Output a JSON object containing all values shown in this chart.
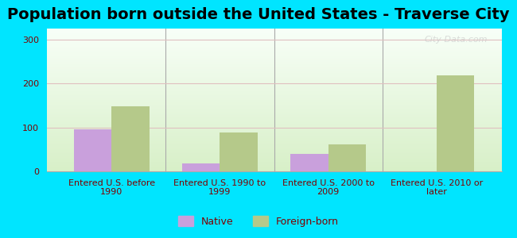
{
  "title": "Population born outside the United States - Traverse City",
  "categories": [
    "Entered U.S. before\n1990",
    "Entered U.S. 1990 to\n1999",
    "Entered U.S. 2000 to\n2009",
    "Entered U.S. 2010 or\nlater"
  ],
  "native_values": [
    95,
    18,
    40,
    0
  ],
  "foreign_values": [
    148,
    88,
    62,
    218
  ],
  "native_color": "#c9a0dc",
  "foreign_color": "#b5c98a",
  "bg_outer": "#00e5ff",
  "bg_plot_top": "#e8f5e0",
  "bg_plot_bottom": "#f0fff0",
  "ylim": [
    0,
    325
  ],
  "yticks": [
    0,
    100,
    200,
    300
  ],
  "grid_color": "#e0c0c0",
  "bar_width": 0.35,
  "title_fontsize": 14,
  "label_fontsize": 8,
  "tick_fontsize": 8,
  "legend_labels": [
    "Native",
    "Foreign-born"
  ],
  "watermark": "City-Data.com"
}
